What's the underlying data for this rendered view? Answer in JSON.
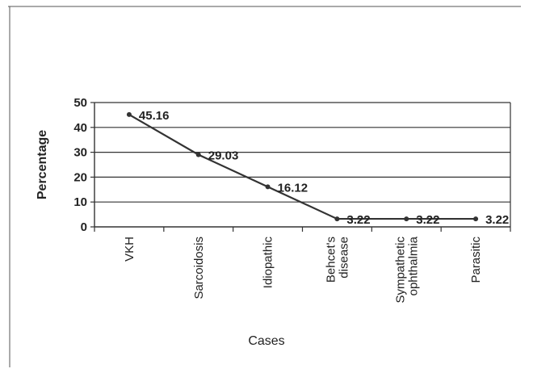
{
  "chart_data": {
    "type": "line",
    "categories": [
      "VKH",
      "Sarcoidosis",
      "Idiopathic",
      "Behcet's disease",
      "Sympathetic ophthalmia",
      "Parasitic"
    ],
    "category_lines": [
      [
        "VKH"
      ],
      [
        "Sarcoidosis"
      ],
      [
        "Idiopathic"
      ],
      [
        "Behcet's",
        "disease"
      ],
      [
        "Sympathetic",
        "ophthalmia"
      ],
      [
        "Parasitic"
      ]
    ],
    "series": [
      {
        "values": [
          45.16,
          29.03,
          16.12,
          3.22,
          3.22,
          3.22
        ]
      }
    ],
    "data_labels": [
      "45.16",
      "29.03",
      "16.12",
      "3.22",
      "3.22",
      "3.22"
    ],
    "xlabel": "Cases",
    "ylabel": "Percentage",
    "ylim": [
      0,
      50
    ],
    "yticks": [
      0,
      10,
      20,
      30,
      40,
      50
    ],
    "grid": true,
    "colors": {
      "line": "#333333",
      "grid": "#333333",
      "axis": "#333333",
      "frame": "#555555"
    }
  }
}
